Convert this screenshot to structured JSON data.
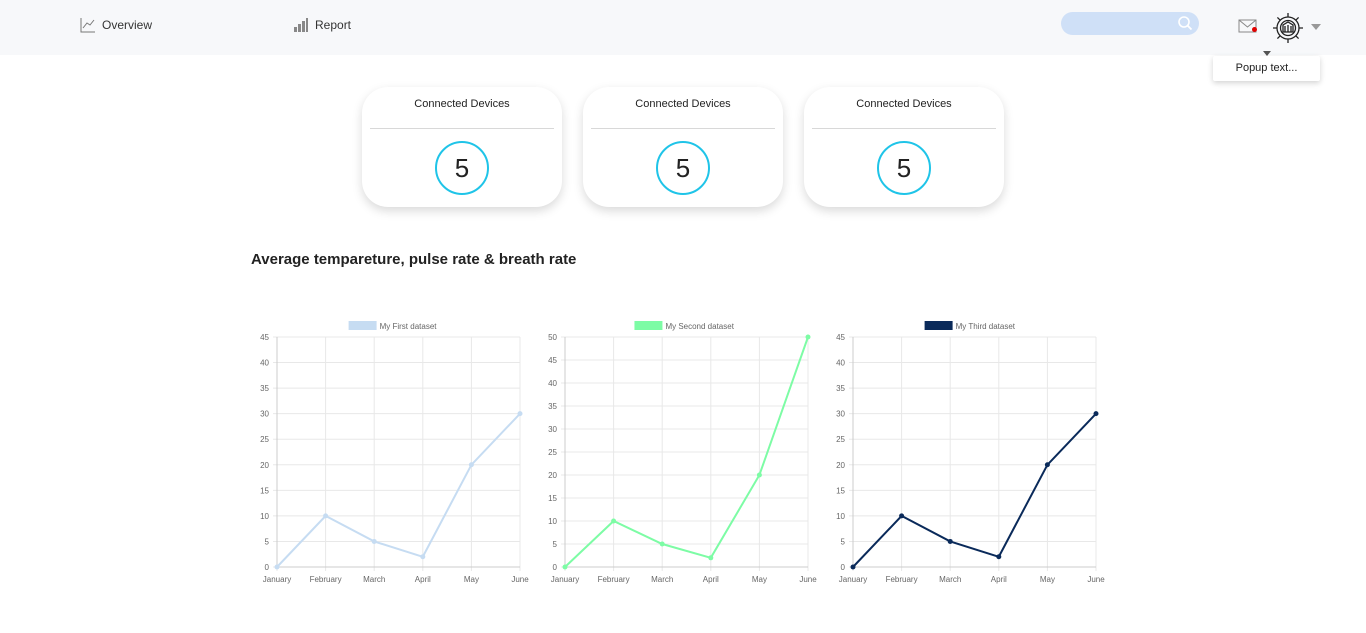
{
  "nav": {
    "overview_label": "Overview",
    "report_label": "Report"
  },
  "search": {
    "placeholder": ""
  },
  "header": {
    "popup_text": "Popup text..."
  },
  "cards": [
    {
      "title": "Connected Devices",
      "value": "5"
    },
    {
      "title": "Connected Devices",
      "value": "5"
    },
    {
      "title": "Connected Devices",
      "value": "5"
    }
  ],
  "section": {
    "title": "Average tempareture, pulse rate & breath rate"
  },
  "colors": {
    "accent": "#1fc4e8",
    "search_bg": "#cfe0f7",
    "notify": "#e00000"
  },
  "chart_data": [
    {
      "type": "line",
      "categories": [
        "January",
        "February",
        "March",
        "April",
        "May",
        "June"
      ],
      "series": [
        {
          "name": "My First dataset",
          "values": [
            0,
            10,
            5,
            2,
            20,
            30
          ],
          "color": "#c6dcf2"
        }
      ],
      "ylim": [
        0,
        45
      ],
      "yticks": [
        0,
        5,
        10,
        15,
        20,
        25,
        30,
        35,
        40,
        45
      ],
      "legend": "top"
    },
    {
      "type": "line",
      "categories": [
        "January",
        "February",
        "March",
        "April",
        "May",
        "June"
      ],
      "series": [
        {
          "name": "My Second dataset",
          "values": [
            0,
            10,
            5,
            2,
            20,
            50
          ],
          "color": "#7dfca5"
        }
      ],
      "ylim": [
        0,
        50
      ],
      "yticks": [
        0,
        5,
        10,
        15,
        20,
        25,
        30,
        35,
        40,
        45,
        50
      ],
      "legend": "top"
    },
    {
      "type": "line",
      "categories": [
        "January",
        "February",
        "March",
        "April",
        "May",
        "June"
      ],
      "series": [
        {
          "name": "My Third dataset",
          "values": [
            0,
            10,
            5,
            2,
            20,
            30
          ],
          "color": "#0a2a5a"
        }
      ],
      "ylim": [
        0,
        45
      ],
      "yticks": [
        0,
        5,
        10,
        15,
        20,
        25,
        30,
        35,
        40,
        45
      ],
      "legend": "top"
    }
  ]
}
